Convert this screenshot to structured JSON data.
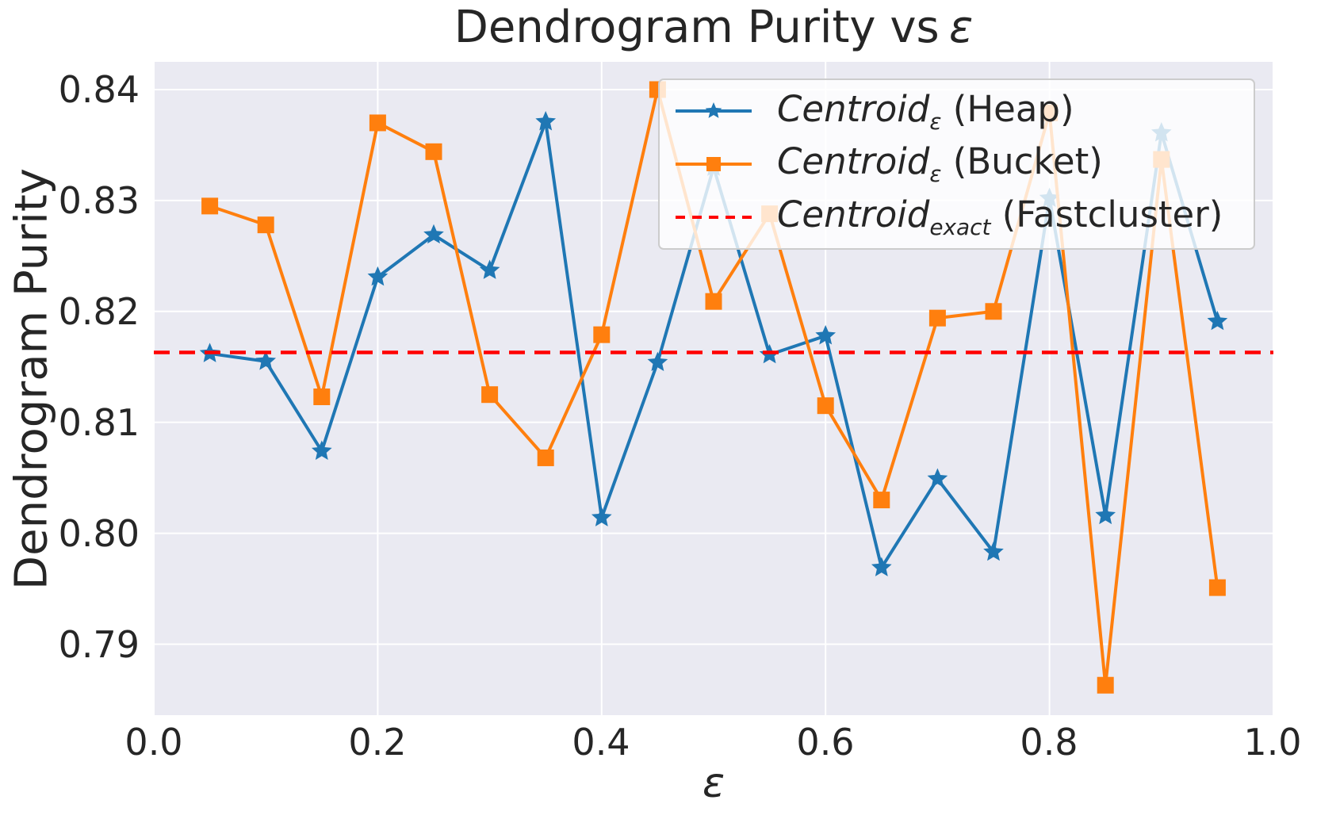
{
  "title": {
    "prefix": "Dendrogram Purity vs",
    "epsilon": "ε"
  },
  "colors": {
    "heap_blue": "#1f77b4",
    "bucket_orange": "#ff7f0e",
    "exact_red": "#ff0000",
    "plot_background": "#eaeaf2",
    "gridline": "#ffffff",
    "text": "#262626",
    "legend_border": "#cccccc"
  },
  "chart_data": {
    "type": "line",
    "title": "Dendrogram Purity vs ε",
    "xlabel": "ε",
    "ylabel": "Dendrogram Purity",
    "xlim": [
      0.0,
      1.0
    ],
    "ylim": [
      0.7836,
      0.8425
    ],
    "grid": true,
    "legend_position": "upper right",
    "x_ticks": [
      0.0,
      0.2,
      0.4,
      0.6,
      0.8,
      1.0
    ],
    "x_tick_labels": [
      "0.0",
      "0.2",
      "0.4",
      "0.6",
      "0.8",
      "1.0"
    ],
    "y_ticks": [
      0.79,
      0.8,
      0.81,
      0.82,
      0.83,
      0.84
    ],
    "y_tick_labels": [
      "0.79",
      "0.80",
      "0.81",
      "0.82",
      "0.83",
      "0.84"
    ],
    "x": [
      0.05,
      0.1,
      0.15,
      0.2,
      0.25,
      0.3,
      0.35,
      0.4,
      0.45,
      0.5,
      0.55,
      0.6,
      0.65,
      0.7,
      0.75,
      0.8,
      0.85,
      0.9,
      0.95
    ],
    "series": [
      {
        "name": "Centroid_ε (Heap)",
        "marker": "star",
        "color": "#1f77b4",
        "values": [
          0.8162,
          0.8155,
          0.8074,
          0.8231,
          0.8269,
          0.8237,
          0.8371,
          0.8014,
          0.8154,
          0.833,
          0.8161,
          0.8178,
          0.7969,
          0.8049,
          0.7983,
          0.8302,
          0.8016,
          0.8361,
          0.8191
        ]
      },
      {
        "name": "Centroid_ε (Bucket)",
        "marker": "square",
        "color": "#ff7f0e",
        "values": [
          0.8295,
          0.8278,
          0.8123,
          0.837,
          0.8344,
          0.8125,
          0.8068,
          0.8179,
          0.84,
          0.8209,
          0.8288,
          0.8115,
          0.803,
          0.8194,
          0.82,
          0.8379,
          0.7863,
          0.8337,
          0.7951
        ]
      }
    ],
    "baseline": {
      "name": "Centroid_exact (Fastcluster)",
      "value": 0.8163,
      "color": "#ff0000",
      "style": "dashed"
    }
  },
  "legend": {
    "items": [
      {
        "label_main": "Centroid",
        "label_sub": "ε",
        "label_rest": " (Heap)",
        "marker": "star",
        "line": "solid",
        "color": "#1f77b4"
      },
      {
        "label_main": "Centroid",
        "label_sub": "ε",
        "label_rest": " (Bucket)",
        "marker": "square",
        "line": "solid",
        "color": "#ff7f0e"
      },
      {
        "label_main": "Centroid",
        "label_sub": "exact",
        "label_rest": " (Fastcluster)",
        "marker": "none",
        "line": "dashed",
        "color": "#ff0000"
      }
    ]
  }
}
